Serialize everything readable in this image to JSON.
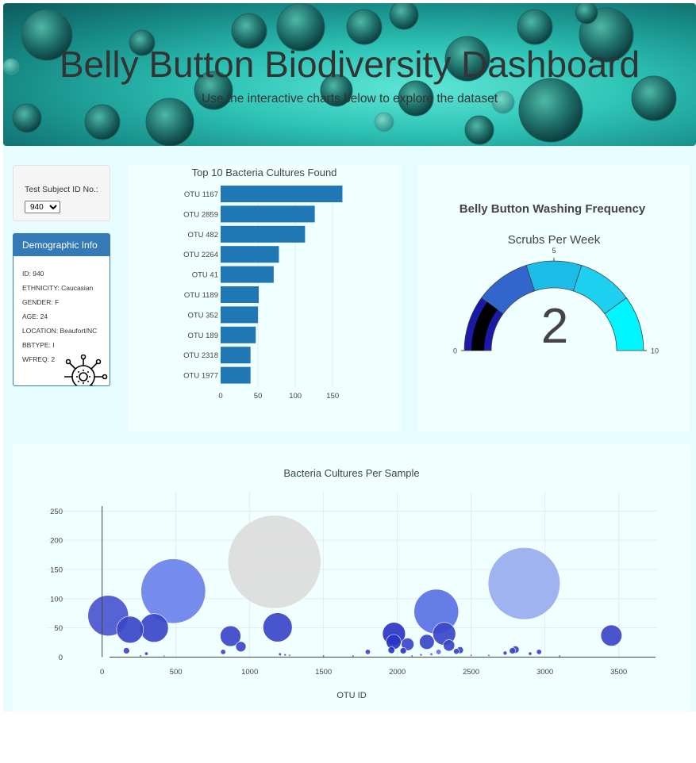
{
  "banner": {
    "title": "Belly Button Biodiversity Dashboard",
    "subtitle": "Use the interactive charts below to explore the dataset"
  },
  "selector": {
    "label": "Test Subject ID No.:",
    "selected": "940"
  },
  "demographics": {
    "header": "Demographic Info",
    "lines": [
      "ID: 940",
      "ETHNICITY: Caucasian",
      "GENDER: F",
      "AGE: 24",
      "LOCATION: Beaufort/NC",
      "BBTYPE: I",
      "WFREQ: 2"
    ]
  },
  "colors": {
    "bar": "#1f77b4",
    "panel_header": "#337ab7",
    "card_bg": "#f0ffff",
    "page_bg": "#e6fcff"
  },
  "chart_data": [
    {
      "type": "bar",
      "orientation": "horizontal",
      "title": "Top 10 Bacteria Cultures Found",
      "categories": [
        "OTU 1167",
        "OTU 2859",
        "OTU 482",
        "OTU 2264",
        "OTU 41",
        "OTU 1189",
        "OTU 352",
        "OTU 189",
        "OTU 2318",
        "OTU 1977"
      ],
      "values": [
        163,
        126,
        113,
        78,
        71,
        51,
        50,
        47,
        40,
        40
      ],
      "xticks": [
        0,
        50,
        100,
        150
      ],
      "xlim": [
        0,
        171
      ]
    },
    {
      "type": "gauge",
      "title": "Belly Button Washing Frequency",
      "subtitle": "Scrubs Per Week",
      "value": 2,
      "value_label": "2",
      "range": [
        0,
        10
      ],
      "tick_labels": [
        "0",
        "5",
        "10"
      ],
      "steps": [
        {
          "from": 0,
          "to": 2,
          "color": "#1a1aa6"
        },
        {
          "from": 2,
          "to": 4,
          "color": "#3366cc"
        },
        {
          "from": 4,
          "to": 6,
          "color": "#1bbde8"
        },
        {
          "from": 6,
          "to": 8,
          "color": "#1ed0f0"
        },
        {
          "from": 8,
          "to": 10,
          "color": "#00f5ff"
        }
      ],
      "bar_color": "#000000"
    },
    {
      "type": "scatter",
      "title": "Bacteria Cultures Per Sample",
      "xlabel": "OTU ID",
      "xticks": [
        0,
        500,
        1000,
        1500,
        2000,
        2500,
        3000,
        3500
      ],
      "yticks": [
        0,
        50,
        100,
        150,
        200,
        250
      ],
      "xlim": [
        -380,
        3760
      ],
      "ylim": [
        -2,
        283
      ],
      "points": [
        {
          "x": 41,
          "y": 71,
          "size": 71
        },
        {
          "x": 189,
          "y": 47,
          "size": 47
        },
        {
          "x": 352,
          "y": 50,
          "size": 50
        },
        {
          "x": 482,
          "y": 113,
          "size": 113
        },
        {
          "x": 1167,
          "y": 163,
          "size": 163
        },
        {
          "x": 1189,
          "y": 51,
          "size": 51
        },
        {
          "x": 2264,
          "y": 78,
          "size": 78
        },
        {
          "x": 2859,
          "y": 126,
          "size": 126
        },
        {
          "x": 1977,
          "y": 40,
          "size": 40
        },
        {
          "x": 2318,
          "y": 40,
          "size": 40
        },
        {
          "x": 3450,
          "y": 37,
          "size": 37
        },
        {
          "x": 870,
          "y": 36,
          "size": 36
        },
        {
          "x": 1975,
          "y": 26,
          "size": 26
        },
        {
          "x": 2200,
          "y": 26,
          "size": 26
        },
        {
          "x": 2070,
          "y": 22,
          "size": 22
        },
        {
          "x": 2350,
          "y": 20,
          "size": 20
        },
        {
          "x": 940,
          "y": 18,
          "size": 18
        },
        {
          "x": 1960,
          "y": 12,
          "size": 12
        },
        {
          "x": 2040,
          "y": 11,
          "size": 11
        },
        {
          "x": 2280,
          "y": 9,
          "size": 9
        },
        {
          "x": 2400,
          "y": 10,
          "size": 10
        },
        {
          "x": 2425,
          "y": 12,
          "size": 12
        },
        {
          "x": 2800,
          "y": 13,
          "size": 13
        },
        {
          "x": 2780,
          "y": 11,
          "size": 11
        },
        {
          "x": 2960,
          "y": 9,
          "size": 9
        },
        {
          "x": 1800,
          "y": 9,
          "size": 9
        },
        {
          "x": 165,
          "y": 11,
          "size": 11
        },
        {
          "x": 820,
          "y": 9,
          "size": 9
        },
        {
          "x": 2730,
          "y": 7,
          "size": 7
        },
        {
          "x": 2900,
          "y": 6,
          "size": 6
        },
        {
          "x": 300,
          "y": 6,
          "size": 6
        },
        {
          "x": 1205,
          "y": 5,
          "size": 5
        },
        {
          "x": 1240,
          "y": 4,
          "size": 4
        },
        {
          "x": 1270,
          "y": 3,
          "size": 3
        },
        {
          "x": 2230,
          "y": 5,
          "size": 5
        },
        {
          "x": 2160,
          "y": 4,
          "size": 4
        },
        {
          "x": 2500,
          "y": 3,
          "size": 3
        },
        {
          "x": 2620,
          "y": 3,
          "size": 3
        },
        {
          "x": 260,
          "y": 2,
          "size": 2
        },
        {
          "x": 420,
          "y": 2,
          "size": 2
        },
        {
          "x": 1500,
          "y": 2,
          "size": 2
        },
        {
          "x": 1700,
          "y": 2,
          "size": 2
        },
        {
          "x": 2100,
          "y": 2,
          "size": 2
        },
        {
          "x": 3100,
          "y": 2,
          "size": 2
        }
      ]
    }
  ]
}
